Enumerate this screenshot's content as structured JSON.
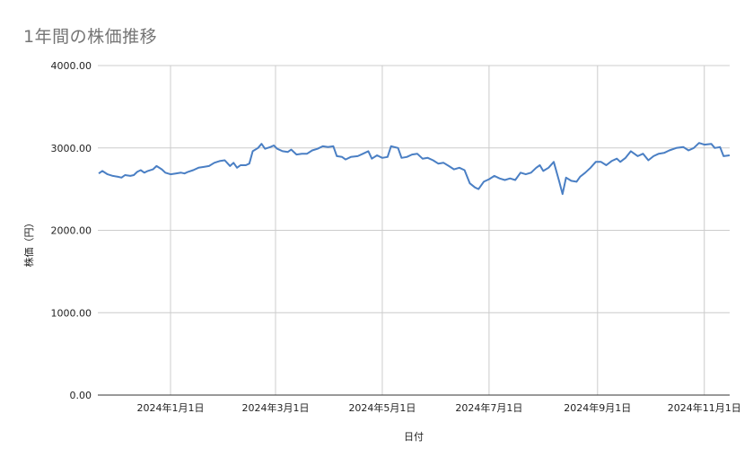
{
  "chart_data": {
    "type": "line",
    "title": "1年間の株価推移",
    "xlabel": "日付",
    "ylabel": "株価（円）",
    "ylim": [
      0,
      4000
    ],
    "yticks": [
      "0.00",
      "1000.00",
      "2000.00",
      "3000.00",
      "4000.00"
    ],
    "xticks": [
      "2024年1月1日",
      "2024年3月1日",
      "2024年5月1日",
      "2024年7月1日",
      "2024年9月1日",
      "2024年11月1日"
    ],
    "grid": true,
    "legend": "none",
    "line_color": "#4a7fc4",
    "series": [
      {
        "name": "株価（円）",
        "points": [
          [
            "2023-11-21",
            2690
          ],
          [
            "2023-11-23",
            2720
          ],
          [
            "2023-11-26",
            2680
          ],
          [
            "2023-11-29",
            2660
          ],
          [
            "2023-12-02",
            2650
          ],
          [
            "2023-12-04",
            2640
          ],
          [
            "2023-12-06",
            2670
          ],
          [
            "2023-12-09",
            2660
          ],
          [
            "2023-12-11",
            2670
          ],
          [
            "2023-12-13",
            2710
          ],
          [
            "2023-12-15",
            2730
          ],
          [
            "2023-12-17",
            2700
          ],
          [
            "2023-12-19",
            2720
          ],
          [
            "2023-12-22",
            2740
          ],
          [
            "2023-12-24",
            2780
          ],
          [
            "2023-12-27",
            2740
          ],
          [
            "2023-12-29",
            2700
          ],
          [
            "2024-01-01",
            2680
          ],
          [
            "2024-01-04",
            2690
          ],
          [
            "2024-01-07",
            2700
          ],
          [
            "2024-01-09",
            2690
          ],
          [
            "2024-01-11",
            2710
          ],
          [
            "2024-01-14",
            2730
          ],
          [
            "2024-01-17",
            2760
          ],
          [
            "2024-01-20",
            2770
          ],
          [
            "2024-01-23",
            2780
          ],
          [
            "2024-01-26",
            2820
          ],
          [
            "2024-01-29",
            2840
          ],
          [
            "2024-02-01",
            2850
          ],
          [
            "2024-02-04",
            2780
          ],
          [
            "2024-02-06",
            2820
          ],
          [
            "2024-02-08",
            2760
          ],
          [
            "2024-02-10",
            2790
          ],
          [
            "2024-02-13",
            2790
          ],
          [
            "2024-02-15",
            2810
          ],
          [
            "2024-02-17",
            2960
          ],
          [
            "2024-02-20",
            3000
          ],
          [
            "2024-02-22",
            3050
          ],
          [
            "2024-02-24",
            2990
          ],
          [
            "2024-02-27",
            3010
          ],
          [
            "2024-02-29",
            3030
          ],
          [
            "2024-03-02",
            2990
          ],
          [
            "2024-03-05",
            2960
          ],
          [
            "2024-03-08",
            2950
          ],
          [
            "2024-03-10",
            2980
          ],
          [
            "2024-03-13",
            2920
          ],
          [
            "2024-03-16",
            2930
          ],
          [
            "2024-03-19",
            2930
          ],
          [
            "2024-03-22",
            2970
          ],
          [
            "2024-03-25",
            2990
          ],
          [
            "2024-03-28",
            3020
          ],
          [
            "2024-03-31",
            3010
          ],
          [
            "2024-04-03",
            3020
          ],
          [
            "2024-04-05",
            2900
          ],
          [
            "2024-04-08",
            2890
          ],
          [
            "2024-04-10",
            2860
          ],
          [
            "2024-04-13",
            2890
          ],
          [
            "2024-04-17",
            2900
          ],
          [
            "2024-04-20",
            2930
          ],
          [
            "2024-04-23",
            2960
          ],
          [
            "2024-04-25",
            2870
          ],
          [
            "2024-04-28",
            2910
          ],
          [
            "2024-05-01",
            2880
          ],
          [
            "2024-05-04",
            2890
          ],
          [
            "2024-05-06",
            3020
          ],
          [
            "2024-05-10",
            3000
          ],
          [
            "2024-05-12",
            2880
          ],
          [
            "2024-05-15",
            2890
          ],
          [
            "2024-05-18",
            2920
          ],
          [
            "2024-05-21",
            2930
          ],
          [
            "2024-05-24",
            2870
          ],
          [
            "2024-05-27",
            2880
          ],
          [
            "2024-05-30",
            2850
          ],
          [
            "2024-06-02",
            2810
          ],
          [
            "2024-06-05",
            2820
          ],
          [
            "2024-06-08",
            2780
          ],
          [
            "2024-06-11",
            2740
          ],
          [
            "2024-06-14",
            2760
          ],
          [
            "2024-06-17",
            2730
          ],
          [
            "2024-06-20",
            2570
          ],
          [
            "2024-06-23",
            2520
          ],
          [
            "2024-06-25",
            2500
          ],
          [
            "2024-06-28",
            2590
          ],
          [
            "2024-07-01",
            2620
          ],
          [
            "2024-07-04",
            2660
          ],
          [
            "2024-07-07",
            2630
          ],
          [
            "2024-07-10",
            2610
          ],
          [
            "2024-07-13",
            2630
          ],
          [
            "2024-07-16",
            2610
          ],
          [
            "2024-07-19",
            2700
          ],
          [
            "2024-07-22",
            2680
          ],
          [
            "2024-07-25",
            2700
          ],
          [
            "2024-07-28",
            2760
          ],
          [
            "2024-07-30",
            2790
          ],
          [
            "2024-08-01",
            2720
          ],
          [
            "2024-08-04",
            2760
          ],
          [
            "2024-08-07",
            2830
          ],
          [
            "2024-08-10",
            2600
          ],
          [
            "2024-08-12",
            2440
          ],
          [
            "2024-08-14",
            2640
          ],
          [
            "2024-08-17",
            2600
          ],
          [
            "2024-08-20",
            2590
          ],
          [
            "2024-08-22",
            2650
          ],
          [
            "2024-08-25",
            2700
          ],
          [
            "2024-08-28",
            2760
          ],
          [
            "2024-08-31",
            2830
          ],
          [
            "2024-09-03",
            2830
          ],
          [
            "2024-09-06",
            2790
          ],
          [
            "2024-09-09",
            2840
          ],
          [
            "2024-09-12",
            2870
          ],
          [
            "2024-09-14",
            2830
          ],
          [
            "2024-09-17",
            2880
          ],
          [
            "2024-09-20",
            2960
          ],
          [
            "2024-09-24",
            2900
          ],
          [
            "2024-09-27",
            2930
          ],
          [
            "2024-09-30",
            2850
          ],
          [
            "2024-10-03",
            2900
          ],
          [
            "2024-10-06",
            2930
          ],
          [
            "2024-10-09",
            2940
          ],
          [
            "2024-10-12",
            2970
          ],
          [
            "2024-10-16",
            3000
          ],
          [
            "2024-10-20",
            3010
          ],
          [
            "2024-10-23",
            2970
          ],
          [
            "2024-10-26",
            3000
          ],
          [
            "2024-10-29",
            3060
          ],
          [
            "2024-11-01",
            3040
          ],
          [
            "2024-11-05",
            3050
          ],
          [
            "2024-11-07",
            3000
          ],
          [
            "2024-11-10",
            3010
          ],
          [
            "2024-11-12",
            2900
          ],
          [
            "2024-11-16",
            2910
          ]
        ]
      }
    ]
  }
}
